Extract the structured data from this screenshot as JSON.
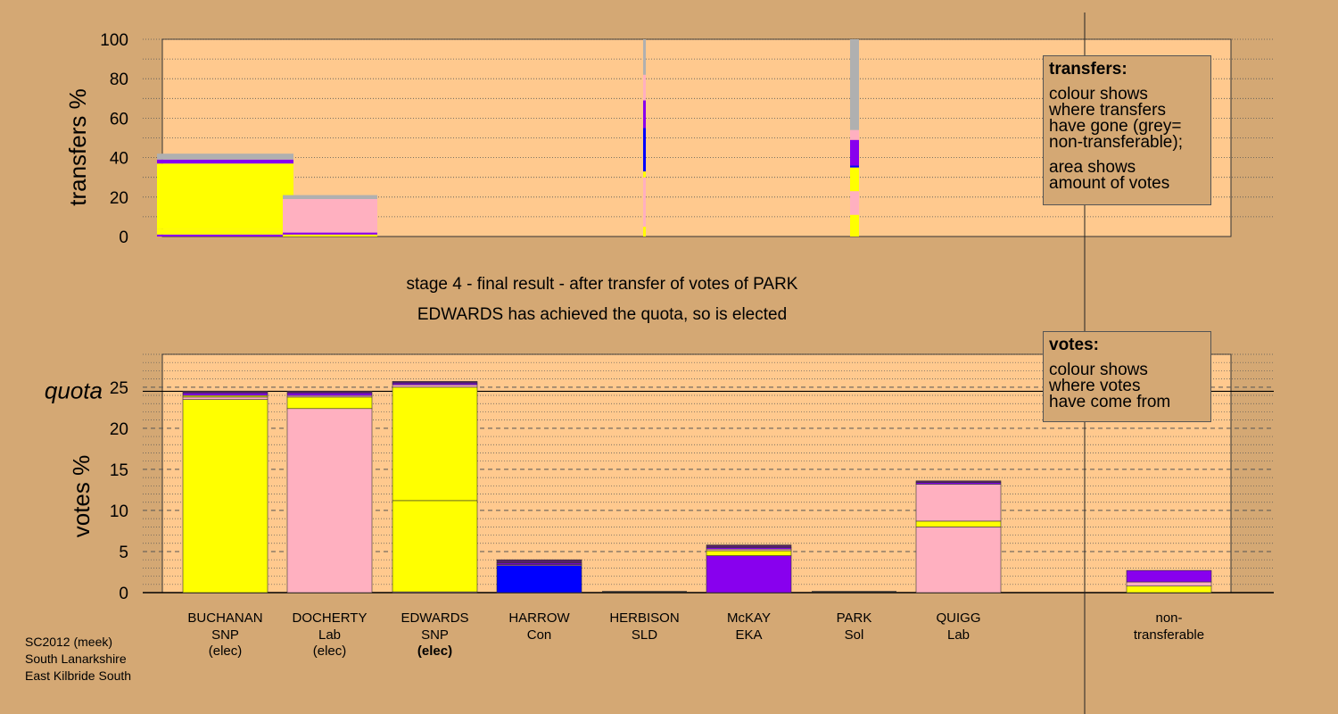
{
  "stage_text": "stage 4 - final result - after transfer of votes of PARK",
  "elected_text": "EDWARDS has achieved the quota, so is elected",
  "transfers_legend": {
    "title": "transfers:",
    "line1": "colour shows",
    "line2": "where transfers",
    "line3": "have gone (grey=",
    "line4": "non-transferable);",
    "line5": "area shows",
    "line6": "amount of votes"
  },
  "votes_legend": {
    "title": "votes:",
    "line1": "colour shows",
    "line2": "where votes",
    "line3": "have come from"
  },
  "credit": {
    "line1": "SC2012 (meek)",
    "line2": "South Lanarkshire",
    "line3": "East Kilbride South"
  },
  "colors": {
    "background": "#d4a874",
    "plot_background": "#ffc98e",
    "SNP": "#ffff00",
    "Lab": "#ffb0c0",
    "Con": "#0000ff",
    "SLD": "#ffa500",
    "EKA": "#8800ee",
    "Sol": "#ff69b4",
    "non_transferable": "#b0b0b0",
    "dark": "#552266"
  },
  "chart_data": [
    {
      "type": "bar",
      "ylabel": "transfers %",
      "ylim": [
        0,
        100
      ],
      "yticks": [
        0,
        20,
        40,
        60,
        80,
        100
      ],
      "grid": "dotted",
      "columns": [
        {
          "segments": [
            {
              "party": "EKA",
              "value": 1
            },
            {
              "party": "SNP",
              "value": 3
            },
            {
              "party": "SNP",
              "value": 33
            },
            {
              "party": "EKA",
              "value": 2
            },
            {
              "party": "non_transferable",
              "value": 3
            }
          ]
        },
        {
          "segments": [
            {
              "party": "SNP",
              "value": 1
            },
            {
              "party": "EKA",
              "value": 1
            },
            {
              "party": "Lab",
              "value": 17
            },
            {
              "party": "non_transferable",
              "value": 2
            }
          ]
        },
        {
          "segments": [
            {
              "party": "SNP",
              "value": 5
            },
            {
              "party": "Lab",
              "value": 13
            },
            {
              "party": "Lab",
              "value": 12
            },
            {
              "party": "SNP",
              "value": 3
            },
            {
              "party": "Con",
              "value": 22
            },
            {
              "party": "EKA",
              "value": 14
            },
            {
              "party": "Lab",
              "value": 10
            },
            {
              "party": "Lab",
              "value": 3
            },
            {
              "party": "non_transferable",
              "value": 18
            }
          ]
        },
        {
          "segments": [
            {
              "party": "SNP",
              "value": 11
            },
            {
              "party": "Lab",
              "value": 12
            },
            {
              "party": "SNP",
              "value": 12
            },
            {
              "party": "Con",
              "value": 1
            },
            {
              "party": "EKA",
              "value": 13
            },
            {
              "party": "Lab",
              "value": 5
            },
            {
              "party": "non_transferable",
              "value": 46
            }
          ]
        }
      ]
    },
    {
      "type": "bar",
      "ylabel": "votes %",
      "ylim": [
        0,
        29
      ],
      "yticks": [
        0,
        5,
        10,
        15,
        20,
        25
      ],
      "quota_label": "quota",
      "quota": 24.5,
      "grid": "dashed",
      "candidates": [
        {
          "name": "BUCHANAN",
          "party": "SNP",
          "status": "(elec)",
          "total": 24.5,
          "segments": [
            {
              "party": "SNP",
              "value": 23.5
            },
            {
              "party": "Lab",
              "value": 0.3
            },
            {
              "party": "SNP",
              "value": 0.2
            },
            {
              "party": "EKA",
              "value": 0.3
            },
            {
              "party": "dark",
              "value": 0.2
            }
          ]
        },
        {
          "name": "DOCHERTY",
          "party": "Lab",
          "status": "(elec)",
          "total": 24.5,
          "segments": [
            {
              "party": "Lab",
              "value": 22.4
            },
            {
              "party": "SNP",
              "value": 1.4
            },
            {
              "party": "Lab",
              "value": 0.2
            },
            {
              "party": "EKA",
              "value": 0.3
            },
            {
              "party": "dark",
              "value": 0.2
            }
          ]
        },
        {
          "name": "EDWARDS",
          "party": "SNP",
          "status": "(elec)",
          "total": 25.7,
          "segments": [
            {
              "party": "Lab",
              "value": 0.1
            },
            {
              "party": "SNP",
              "value": 11.1
            },
            {
              "party": "SNP",
              "value": 13.8
            },
            {
              "party": "Lab",
              "value": 0.3
            },
            {
              "party": "EKA",
              "value": 0.2
            },
            {
              "party": "dark",
              "value": 0.2
            }
          ]
        },
        {
          "name": "HARROW",
          "party": "Con",
          "status": "",
          "total": 4.0,
          "segments": [
            {
              "party": "Con",
              "value": 3.3
            },
            {
              "party": "Lab",
              "value": 0.1
            },
            {
              "party": "EKA",
              "value": 0.2
            },
            {
              "party": "dark",
              "value": 0.4
            }
          ]
        },
        {
          "name": "HERBISON",
          "party": "SLD",
          "status": "",
          "total": 0,
          "segments": []
        },
        {
          "name": "McKAY",
          "party": "EKA",
          "status": "",
          "total": 5.8,
          "segments": [
            {
              "party": "EKA",
              "value": 4.5
            },
            {
              "party": "SNP",
              "value": 0.6
            },
            {
              "party": "Lab",
              "value": 0.2
            },
            {
              "party": "EKA",
              "value": 0.2
            },
            {
              "party": "dark",
              "value": 0.3
            }
          ]
        },
        {
          "name": "PARK",
          "party": "Sol",
          "status": "",
          "total": 0,
          "segments": []
        },
        {
          "name": "QUIGG",
          "party": "Lab",
          "status": "",
          "total": 13.6,
          "segments": [
            {
              "party": "Lab",
              "value": 8.0
            },
            {
              "party": "SNP",
              "value": 0.7
            },
            {
              "party": "Lab",
              "value": 4.5
            },
            {
              "party": "EKA",
              "value": 0.2
            },
            {
              "party": "dark",
              "value": 0.2
            }
          ]
        }
      ],
      "non_transferable": {
        "label_line1": "non-",
        "label_line2": "transferable",
        "total": 2.7,
        "segments": [
          {
            "party": "SNP",
            "value": 0.8
          },
          {
            "party": "Lab",
            "value": 0.5
          },
          {
            "party": "EKA",
            "value": 1.4
          }
        ]
      }
    }
  ]
}
